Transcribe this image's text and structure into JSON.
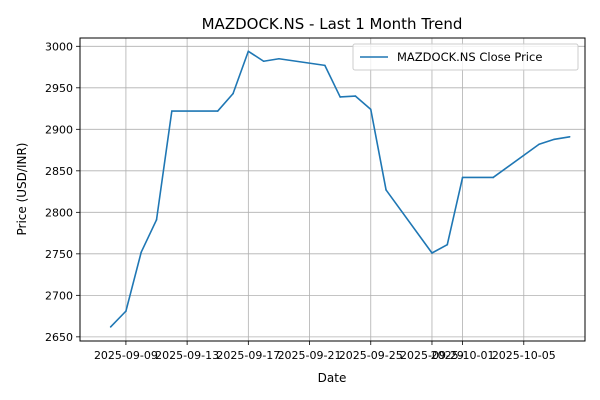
{
  "chart_data": {
    "type": "line",
    "title": "MAZDOCK.NS - Last 1 Month Trend",
    "xlabel": "Date",
    "ylabel": "Price (USD/INR)",
    "x_type": "date",
    "x": [
      "2025-09-08",
      "2025-09-09",
      "2025-09-10",
      "2025-09-11",
      "2025-09-12",
      "2025-09-15",
      "2025-09-16",
      "2025-09-17",
      "2025-09-18",
      "2025-09-19",
      "2025-09-22",
      "2025-09-23",
      "2025-09-24",
      "2025-09-25",
      "2025-09-26",
      "2025-09-29",
      "2025-09-30",
      "2025-10-01",
      "2025-10-03",
      "2025-10-06",
      "2025-10-07",
      "2025-10-08"
    ],
    "xlim": [
      "2025-09-06",
      "2025-10-09"
    ],
    "xticks": [
      "2025-09-09",
      "2025-09-13",
      "2025-09-17",
      "2025-09-21",
      "2025-09-25",
      "2025-09-29",
      "2025-10-01",
      "2025-10-05"
    ],
    "ylim": [
      2645,
      3010
    ],
    "yticks": [
      2650,
      2700,
      2750,
      2800,
      2850,
      2900,
      2950,
      3000
    ],
    "grid": true,
    "legend_position": "top-right",
    "colors": {
      "series": "#1f77b4",
      "grid": "#b0b0b0",
      "axis": "#000000"
    },
    "series": [
      {
        "name": "MAZDOCK.NS Close Price",
        "values": [
          2662,
          2681,
          2752,
          2791,
          2922,
          2922,
          2943,
          2994,
          2982,
          2985,
          2977,
          2939,
          2940,
          2924,
          2827,
          2751,
          2761,
          2842,
          2842,
          2882,
          2888,
          2891
        ]
      }
    ]
  }
}
